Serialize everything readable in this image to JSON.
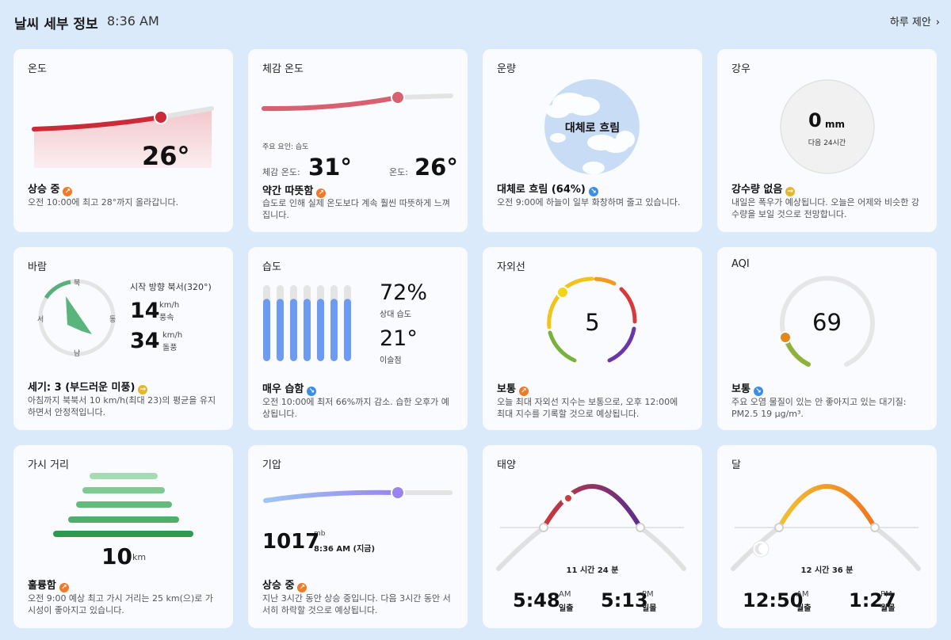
{
  "header": {
    "title": "날씨 세부 정보",
    "time": "8:36 AM",
    "suggest": "하루 제안",
    "chev": "›"
  },
  "temperature": {
    "title": "온도",
    "value": "26°",
    "status": "상승 중",
    "desc": "오전 10:00에 최고 28°까지 올라갑니다.",
    "level": 0.6
  },
  "feels": {
    "title": "체감 온도",
    "factor": "주요 요인: 습도",
    "feels_label": "체감 온도:",
    "feels_value": "31°",
    "temp_label": "온도:",
    "temp_value": "26°",
    "status": "약간 따뜻함",
    "desc": "습도로 인해 실제 온도보다 계속 훨씬 따뜻하게 느껴집니다."
  },
  "cloud": {
    "title": "운량",
    "label": "대체로 흐림",
    "status": "대체로 흐림 (64%)",
    "percent": 64,
    "desc": "오전 9:00에 하늘이 일부 화창하며 줄고 있습니다."
  },
  "rain": {
    "title": "강우",
    "value": "0",
    "unit": "mm",
    "sub": "다음 24시간",
    "status": "강수량 없음",
    "desc": "내일은 폭우가 예상됩니다. 오늘은 어제와 비슷한 강수량을 보일 것으로 전망합니다."
  },
  "wind": {
    "title": "바람",
    "north": "북",
    "west": "서",
    "east": "동",
    "south": "남",
    "direction": "시작 방향 북서(320°)",
    "speed": "14",
    "speed_unit": "km/h",
    "speed_label": "풍속",
    "gust": "34",
    "gust_unit": "km/h",
    "gust_label": "돌풍",
    "status": "세기: 3 (부드러운 미풍)",
    "desc": "아침까지 북북서 10 km/h(최대 23)의 평균을 유지하면서 안정적입니다."
  },
  "humidity": {
    "title": "습도",
    "value": "72%",
    "value_label": "상대 습도",
    "dew": "21°",
    "dew_label": "이슬점",
    "status": "매우 습함",
    "desc": "오전 10:00에 최저 66%까지 감소. 습한 오후가 예상됩니다.",
    "bars": [
      0.72,
      0.72,
      0.72,
      0.72,
      0.72,
      0.72,
      0.72
    ]
  },
  "uv": {
    "title": "자외선",
    "value": "5",
    "status": "보통",
    "desc": "오늘 최대 자외선 지수는 보통으로, 오후 12:00에 최대 지수를 기록할 것으로 예상됩니다."
  },
  "aqi": {
    "title": "AQI",
    "value": "69",
    "status": "보통",
    "desc": "주요 오염 물질이 있는 안 좋아지고 있는 대기질: PM2.5 19 μg/m³."
  },
  "visibility": {
    "title": "가시 거리",
    "value": "10",
    "unit": "km",
    "status": "훌륭함",
    "desc": "오전 9:00 예상 최고 가시 거리는 25 km(으)로 가시성이 좋아지고 있습니다."
  },
  "pressure": {
    "title": "기압",
    "unit": "mb",
    "value": "1017",
    "time": "8:36 AM (지금)",
    "status": "상승 중",
    "desc": "지난 3시간 동안 상승 중입니다. 다음 3시간 동안 서서히 하락할 것으로 예상됩니다."
  },
  "sun": {
    "title": "태양",
    "duration": "11 시간 24 분",
    "rise": "5:48",
    "rise_ampm": "AM",
    "rise_label": "일출",
    "set": "5:13",
    "set_ampm": "PM",
    "set_label": "일몰"
  },
  "moon": {
    "title": "달",
    "duration": "12 시간 36 분",
    "rise": "12:50",
    "rise_ampm": "AM",
    "rise_label": "월출",
    "set": "1:27",
    "set_ampm": "PM",
    "set_label": "월몰"
  },
  "colors": {
    "temp": "#cc2a38",
    "feels": "#d96070",
    "uv_orange": "#f39a1f",
    "aqi_orange": "#e0881c",
    "humidity_bar": "#6d9bf2",
    "pressure": "#9a83ef",
    "green": "#3e9a52"
  }
}
